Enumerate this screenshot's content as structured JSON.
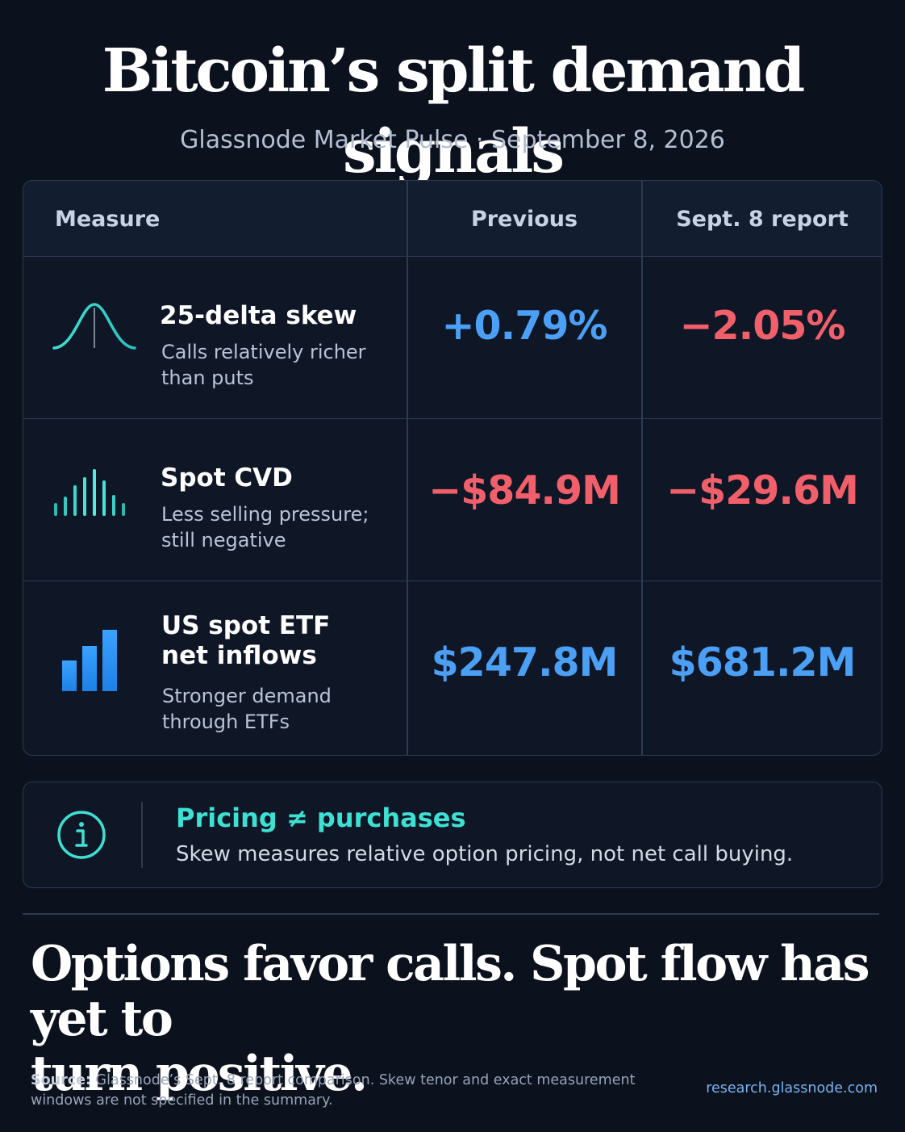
{
  "title": "Bitcoin’s split demand signals",
  "subtitle": "Glassnode Market Pulse · September 8, 2026",
  "table": {
    "headers": {
      "measure": "Measure",
      "previous": "Previous",
      "current": "Sept. 8 report"
    },
    "rows": [
      {
        "icon": "bell-curve-icon",
        "name": "25-delta skew",
        "desc_line1": "Calls relatively richer",
        "desc_line2": "than puts",
        "previous": "+0.79%",
        "current": "−2.05%",
        "previous_sign": "positive",
        "current_sign": "negative"
      },
      {
        "icon": "volume-bars-icon",
        "name": "Spot CVD",
        "desc_line1": "Less selling pressure;",
        "desc_line2": "still negative",
        "previous": "−$84.9M",
        "current": "−$29.6M",
        "previous_sign": "negative",
        "current_sign": "negative"
      },
      {
        "icon": "bar-chart-icon",
        "name_line1": "US spot ETF",
        "name_line2": "net inflows",
        "desc_line1": "Stronger demand",
        "desc_line2": "through ETFs",
        "previous": "$247.8M",
        "current": "$681.2M",
        "previous_sign": "positive",
        "current_sign": "positive"
      }
    ]
  },
  "note": {
    "icon": "info-icon",
    "title": "Pricing ≠ purchases",
    "text": "Skew measures relative option pricing, not net call buying."
  },
  "headline_line1": "Options favor calls. Spot flow has yet to",
  "headline_line2": "turn positive.",
  "source": {
    "label": "Source:",
    "text": "Glassnode’s Sept. 8 report comparison. Skew tenor and exact measurement windows are not specified in the summary."
  },
  "url": "research.glassnode.com",
  "colors": {
    "background": "#0b111d",
    "positive": "#4ba0f5",
    "negative": "#f1606a",
    "accent_teal": "#3fe0d4",
    "accent_blue": "#2f8ef0"
  }
}
